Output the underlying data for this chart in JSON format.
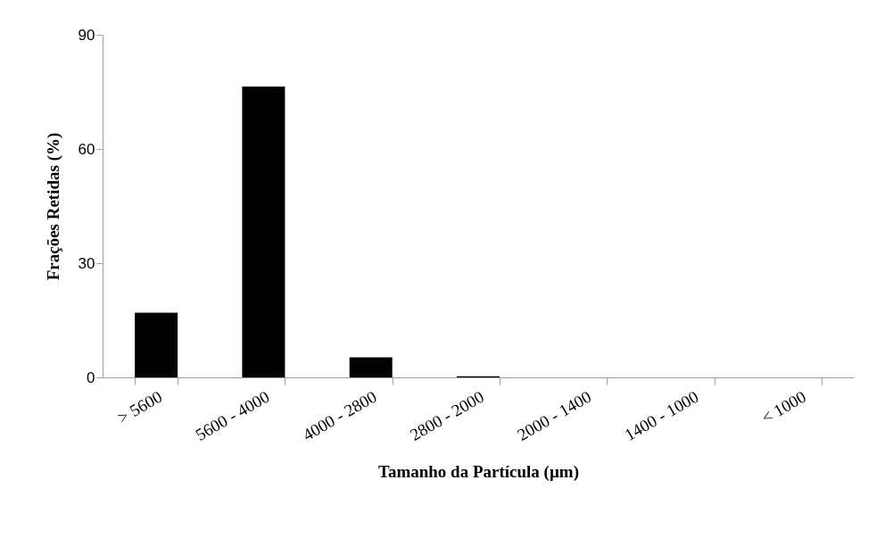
{
  "chart_data": {
    "type": "bar",
    "xlabel": "Tamanho da Partícula (µm)",
    "ylabel": "Frações Retidas (%)",
    "categories": [
      "> 5600",
      "5600 - 4000",
      "4000 - 2800",
      "2800 - 2000",
      "2000 - 1400",
      "1400 - 1000",
      "< 1000"
    ],
    "values": [
      17.0,
      76.4,
      5.3,
      0.3,
      0,
      0,
      0
    ],
    "color": "#000000",
    "ylim": [
      0,
      90
    ],
    "yticks": [
      0,
      30,
      60,
      90
    ],
    "grid": false
  }
}
